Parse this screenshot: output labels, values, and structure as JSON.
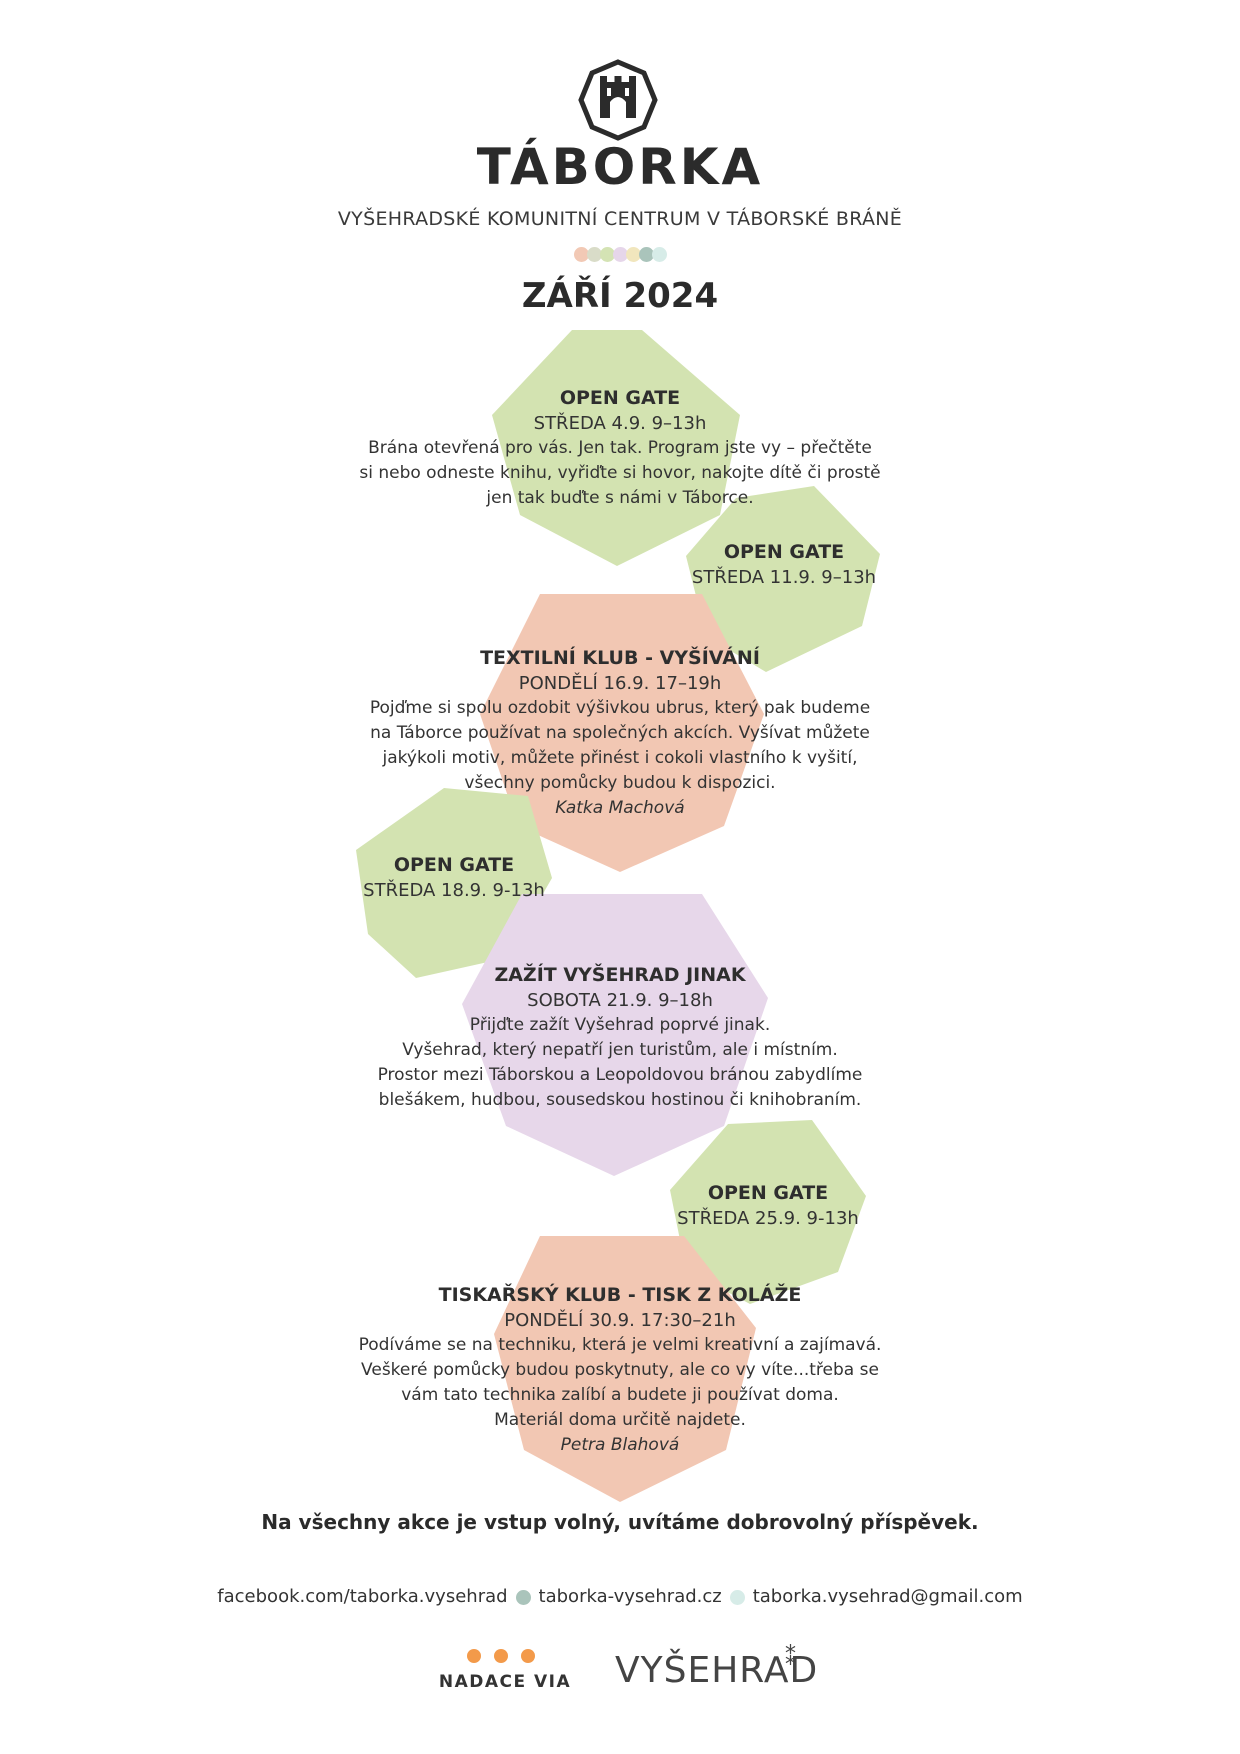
{
  "header": {
    "logo_icon": "castle-gate-icon",
    "brand": "TÁBORKA",
    "subtitle": "VYŠEHRADSKÉ KOMUNITNÍ CENTRUM V TÁBORSKÉ BRÁNĚ",
    "dot_colors": [
      "#f2c9b5",
      "#d9dcc8",
      "#d4e3b4",
      "#e6d6ea",
      "#f1e6bd",
      "#aac4bb",
      "#d7ece8"
    ],
    "month": "ZÁŘÍ 2024"
  },
  "colors": {
    "green": "#d3e3b1",
    "peach": "#f2c7b3",
    "lilac": "#e7d7ea"
  },
  "events": [
    {
      "title": "OPEN GATE",
      "date": "STŘEDA 4.9. 9–13h",
      "desc": [
        "Brána otevřená pro vás. Jen tak. Program jste vy – přečtěte",
        "si nebo odneste knihu, vyřiďte si hovor, nakojte dítě či prostě",
        "jen tak buďte s námi v Táborce."
      ]
    },
    {
      "title": "OPEN GATE",
      "date": "STŘEDA 11.9. 9–13h"
    },
    {
      "title": "TEXTILNÍ KLUB - VYŠÍVÁNÍ",
      "date": "PONDĚLÍ 16.9. 17–19h",
      "desc": [
        "Pojďme si spolu ozdobit výšivkou ubrus, který pak budeme",
        "na Táborce používat na společných akcích. Vyšívat můžete",
        "jakýkoli motiv, můžete přinést i cokoli vlastního k vyšití,",
        "všechny pomůcky budou k dispozici."
      ],
      "author": "Katka Machová"
    },
    {
      "title": "OPEN GATE",
      "date": "STŘEDA 18.9. 9-13h"
    },
    {
      "title": "ZAŽÍT VYŠEHRAD JINAK",
      "date": "SOBOTA 21.9. 9–18h",
      "desc": [
        "Přijďte zažít Vyšehrad poprvé jinak.",
        "Vyšehrad, který nepatří jen turistům, ale i místním.",
        "Prostor mezi Táborskou a Leopoldovou bránou zabydlíme",
        "blešákem, hudbou, sousedskou hostinou či knihobraním."
      ]
    },
    {
      "title": "OPEN GATE",
      "date": "STŘEDA 25.9. 9-13h"
    },
    {
      "title": "TISKAŘSKÝ KLUB - TISK Z KOLÁŽE",
      "date": "PONDĚLÍ 30.9. 17:30–21h",
      "desc": [
        "Podíváme se na techniku, která je velmi kreativní a zajímavá.",
        "Veškeré pomůcky budou poskytnuty, ale co vy víte...třeba se",
        "vám tato technika zalíbí a budete ji používat doma.",
        "Materiál doma určitě najdete."
      ],
      "author": "Petra Blahová"
    }
  ],
  "footer": {
    "free_entry": "Na všechny akce je vstup volný, uvítáme dobrovolný příspěvek.",
    "facebook": "facebook.com/taborka.vysehrad",
    "website": "taborka-vysehrad.cz",
    "email": "taborka.vysehrad@gmail.com",
    "contact_dot_colors": [
      "#aac4bb",
      "#d7ece8"
    ],
    "sponsor1": "NADACE VIA",
    "sponsor1_dot_color": "#f39a4a",
    "sponsor2": "VYŠEHRAD",
    "sponsor2_mark": "⁑"
  }
}
